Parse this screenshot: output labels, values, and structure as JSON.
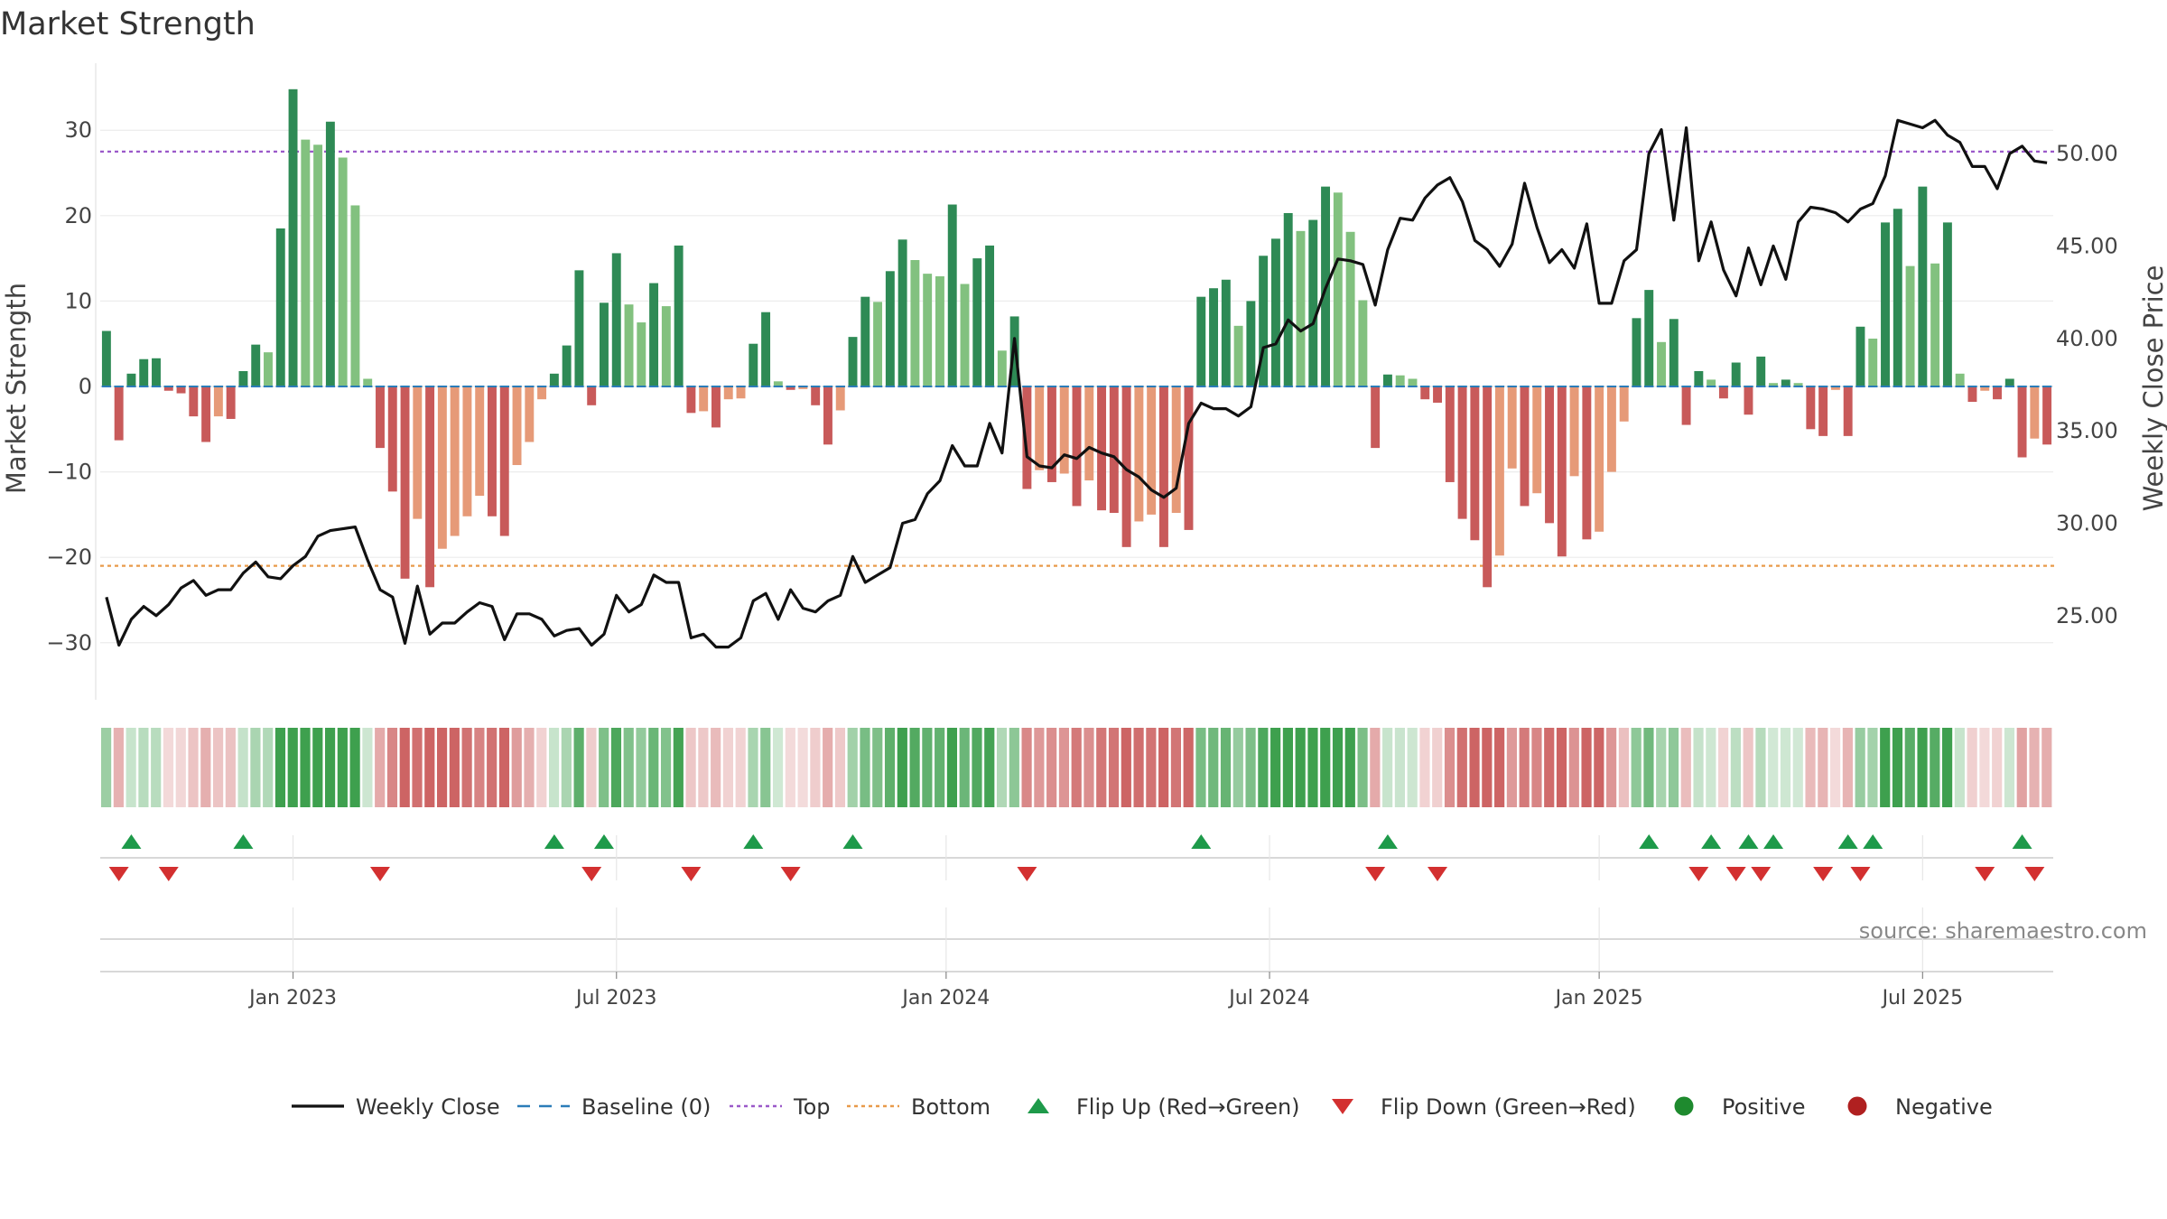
{
  "chart_data": {
    "type": "bar",
    "title": "Market Strength",
    "ylabel_left": "Market Strength",
    "ylabel_right": "Weekly Close Price",
    "left_axis": {
      "range": [
        -37,
        37
      ],
      "ticks": [
        30,
        20,
        10,
        0,
        -10,
        -20,
        -30
      ],
      "tick_labels": [
        "30",
        "20",
        "10",
        "0",
        "−10",
        "−20",
        "−30"
      ]
    },
    "right_axis": {
      "range": [
        20.3,
        54.5
      ],
      "ticks": [
        50,
        45,
        40,
        35,
        30,
        25
      ],
      "tick_labels": [
        "50.00",
        "45.00",
        "40.00",
        "35.00",
        "30.00",
        "25.00"
      ]
    },
    "x_tick_labels": [
      {
        "label": "Jan 2023",
        "week": 15
      },
      {
        "label": "Jul 2023",
        "week": 41
      },
      {
        "label": "Jan 2024",
        "week": 67.5
      },
      {
        "label": "Jul 2024",
        "week": 93.5
      },
      {
        "label": "Jan 2025",
        "week": 120
      },
      {
        "label": "Jul 2025",
        "week": 146
      }
    ],
    "top_level": 27.5,
    "bottom_level": -21.0,
    "strength": [
      6.5,
      -6.3,
      1.5,
      3.2,
      3.3,
      -0.5,
      -0.8,
      -3.5,
      -6.5,
      -3.5,
      -3.8,
      1.8,
      4.9,
      4.0,
      18.5,
      34.8,
      28.9,
      28.3,
      31.0,
      26.8,
      21.2,
      0.9,
      -7.2,
      -12.3,
      -22.5,
      -15.5,
      -23.5,
      -19.0,
      -17.5,
      -15.2,
      -12.8,
      -15.2,
      -17.5,
      -9.2,
      -6.5,
      -1.5,
      1.5,
      4.8,
      13.6,
      -2.2,
      9.8,
      15.6,
      9.6,
      7.5,
      12.1,
      9.4,
      16.5,
      -3.1,
      -2.9,
      -4.8,
      -1.5,
      -1.4,
      5.0,
      8.7,
      0.6,
      -0.4,
      -0.3,
      -2.2,
      -6.8,
      -2.8,
      5.8,
      10.5,
      9.9,
      13.5,
      17.2,
      14.8,
      13.2,
      12.9,
      21.3,
      12.0,
      15.0,
      16.5,
      4.2,
      8.2,
      -12.0,
      -9.8,
      -11.2,
      -10.2,
      -14.0,
      -11.0,
      -14.5,
      -14.8,
      -18.8,
      -15.8,
      -15.0,
      -18.8,
      -14.8,
      -16.8,
      10.5,
      11.5,
      12.5,
      7.1,
      10.0,
      15.3,
      17.3,
      20.3,
      18.2,
      19.5,
      23.4,
      22.7,
      18.1,
      10.1,
      -7.2,
      1.4,
      1.3,
      0.9,
      -1.5,
      -1.9,
      -11.2,
      -15.5,
      -18.0,
      -23.5,
      -19.8,
      -9.6,
      -14.0,
      -12.5,
      -16.0,
      -19.9,
      -10.5,
      -17.9,
      -17.0,
      -10.0,
      -4.1,
      8.0,
      11.3,
      5.2,
      7.9,
      -4.5,
      1.8,
      0.8,
      -1.4,
      2.8,
      -3.3,
      3.5,
      0.4,
      0.8,
      0.4,
      -5.0,
      -5.8,
      -0.4,
      -5.8,
      7.0,
      5.6,
      19.2,
      20.8,
      14.1,
      23.4,
      14.4,
      19.2,
      1.5,
      -1.8,
      -0.5,
      -1.5,
      0.9,
      -8.3,
      -6.1,
      -6.8
    ],
    "weekly_close": [
      26.0,
      23.4,
      24.8,
      25.5,
      25.0,
      25.6,
      26.5,
      26.9,
      26.1,
      26.4,
      26.4,
      27.3,
      27.9,
      27.1,
      27.0,
      27.7,
      28.2,
      29.3,
      29.6,
      29.7,
      29.8,
      28.0,
      26.4,
      26.0,
      23.5,
      26.6,
      24.0,
      24.6,
      24.6,
      25.2,
      25.7,
      25.5,
      23.7,
      25.1,
      25.1,
      24.8,
      23.9,
      24.2,
      24.3,
      23.4,
      24.0,
      26.1,
      25.2,
      25.6,
      27.2,
      26.8,
      26.8,
      23.8,
      24.0,
      23.3,
      23.3,
      23.8,
      25.8,
      26.2,
      24.8,
      26.4,
      25.4,
      25.2,
      25.8,
      26.1,
      28.2,
      26.8,
      27.2,
      27.6,
      30.0,
      30.2,
      31.6,
      32.3,
      34.2,
      33.1,
      33.1,
      35.4,
      33.8,
      40.0,
      33.6,
      33.1,
      33.0,
      33.7,
      33.5,
      34.1,
      33.8,
      33.6,
      32.9,
      32.5,
      31.8,
      31.4,
      31.9,
      35.4,
      36.5,
      36.2,
      36.2,
      35.8,
      36.3,
      39.5,
      39.7,
      41.0,
      40.4,
      40.8,
      42.7,
      44.3,
      44.2,
      44.0,
      41.8,
      44.8,
      46.5,
      46.4,
      47.6,
      48.3,
      48.7,
      47.4,
      45.3,
      44.8,
      43.9,
      45.1,
      48.4,
      46.0,
      44.1,
      44.8,
      43.8,
      46.2,
      41.9,
      41.9,
      44.2,
      44.8,
      50.0,
      51.3,
      46.4,
      51.4,
      44.2,
      46.3,
      43.7,
      42.3,
      44.9,
      42.9,
      45.0,
      43.2,
      46.3,
      47.1,
      47.0,
      46.8,
      46.3,
      47.0,
      47.3,
      48.8,
      51.8,
      51.6,
      51.4,
      51.8,
      51.0,
      50.6,
      49.3,
      49.3,
      48.1,
      50.0,
      50.4,
      49.6,
      49.5
    ],
    "flip_up_weeks": [
      2,
      11,
      36,
      40,
      52,
      60,
      88,
      103,
      124,
      129,
      132,
      134,
      140,
      142,
      154
    ],
    "flip_down_weeks": [
      1,
      5,
      22,
      39,
      47,
      55,
      74,
      102,
      107,
      128,
      131,
      133,
      138,
      141,
      151,
      155
    ],
    "colors": {
      "strong_green": "#2e8a55",
      "light_green": "#82c17f",
      "strong_red": "#c85a5a",
      "light_red": "#e69a78",
      "weekly_close": "#111111",
      "baseline": "#2b7cb8",
      "top_line": "#9b59c9",
      "bottom_line": "#e89a4a",
      "flip_up": "#1e9a4a",
      "flip_down": "#d33030",
      "positive": "#1e8a2e",
      "negative": "#b02020"
    },
    "legend": [
      {
        "name": "Weekly Close",
        "kind": "line"
      },
      {
        "name": "Baseline (0)",
        "kind": "dash"
      },
      {
        "name": "Top",
        "kind": "dot-purple"
      },
      {
        "name": "Bottom",
        "kind": "dot-orange"
      },
      {
        "name": "Flip Up (Red→Green)",
        "kind": "tri-up"
      },
      {
        "name": "Flip Down (Green→Red)",
        "kind": "tri-down"
      },
      {
        "name": "Positive",
        "kind": "dot-green"
      },
      {
        "name": "Negative",
        "kind": "dot-red"
      }
    ],
    "source": "source: sharemaestro.com"
  }
}
